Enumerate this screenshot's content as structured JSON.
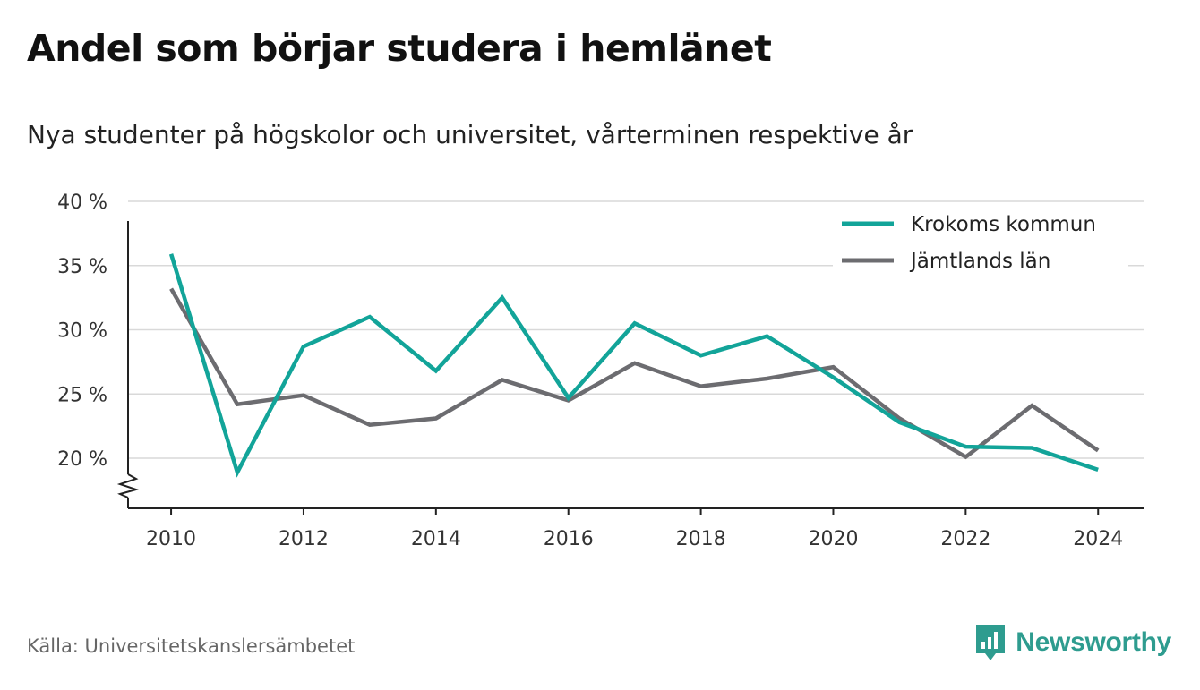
{
  "title": "Andel som börjar studera i hemlänet",
  "subtitle": "Nya studenter på högskolor och universitet, vårterminen respektive år",
  "source": "Källa: Universitetskanslersämbetet",
  "brand": {
    "name": "Newsworthy",
    "color": "#2e9c8f",
    "icon": "bar-chart-speech-bubble-icon"
  },
  "chart_data": {
    "type": "line",
    "x": [
      2010,
      2011,
      2012,
      2013,
      2014,
      2015,
      2016,
      2017,
      2018,
      2019,
      2020,
      2021,
      2022,
      2023,
      2024
    ],
    "series": [
      {
        "name": "Krokoms kommun",
        "color": "#12a499",
        "values": [
          35.9,
          18.9,
          28.7,
          31.0,
          26.8,
          32.5,
          24.7,
          30.5,
          28.0,
          29.5,
          26.3,
          22.8,
          20.9,
          20.8,
          19.1
        ]
      },
      {
        "name": "Jämtlands län",
        "color": "#6c6c70",
        "values": [
          33.2,
          24.2,
          24.9,
          22.6,
          23.1,
          26.1,
          24.5,
          27.4,
          25.6,
          26.2,
          27.1,
          23.1,
          20.1,
          24.1,
          20.6
        ]
      }
    ],
    "xticks": [
      2010,
      2012,
      2014,
      2016,
      2018,
      2020,
      2022,
      2024
    ],
    "xtick_labels": [
      "2010",
      "2012",
      "2014",
      "2016",
      "2018",
      "2020",
      "2022",
      "2024"
    ],
    "yticks": [
      20,
      25,
      30,
      35,
      40
    ],
    "ytick_labels": [
      "20 %",
      "25 %",
      "30 %",
      "35 %",
      "40 %"
    ],
    "ylim": [
      16,
      40
    ],
    "xlim": [
      2009.35,
      2024.7
    ],
    "y_axis_break": true,
    "grid": true,
    "legend_position": "top-right",
    "xlabel": "",
    "ylabel": ""
  }
}
